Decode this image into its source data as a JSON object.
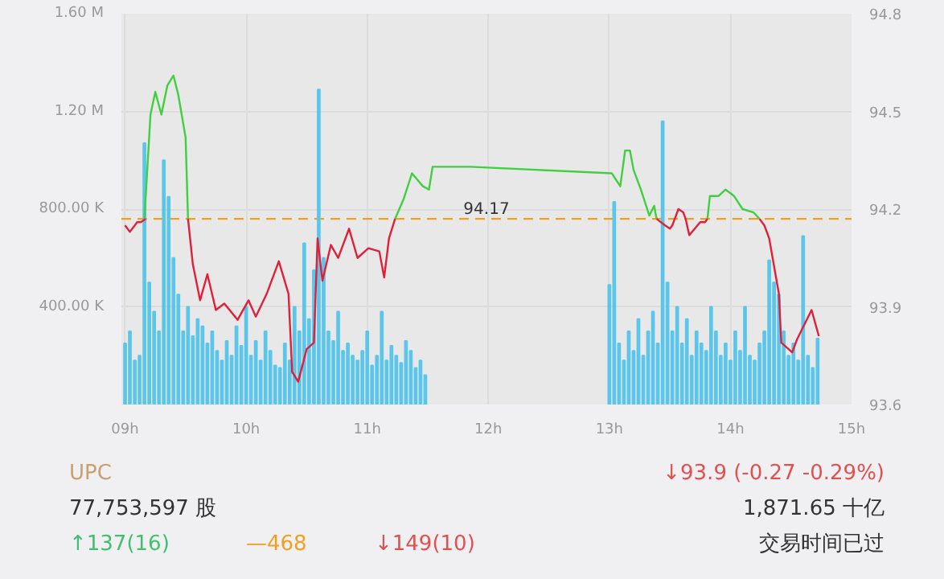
{
  "chart_data": {
    "type": "bar",
    "xlim": [
      8.97,
      15
    ],
    "xticks": [
      {
        "value": 9,
        "label": "09h"
      },
      {
        "value": 10,
        "label": "10h"
      },
      {
        "value": 11,
        "label": "11h"
      },
      {
        "value": 12,
        "label": "12h"
      },
      {
        "value": 13,
        "label": "13h"
      },
      {
        "value": 14,
        "label": "14h"
      },
      {
        "value": 15,
        "label": "15h"
      }
    ],
    "ylim": [
      0,
      1600000
    ],
    "yticks": [
      {
        "value": 0,
        "label": null
      },
      {
        "value": 400000,
        "label": "400.00 K"
      },
      {
        "value": 800000,
        "label": "800.00 K"
      },
      {
        "value": 1200000,
        "label": "1.20 M"
      },
      {
        "value": 1600000,
        "label": "1.60 M"
      }
    ],
    "y2lim": [
      93.6,
      94.8
    ],
    "y2ticks": [
      93.6,
      93.9,
      94.2,
      94.5,
      94.8
    ],
    "grid": true,
    "series": [
      {
        "axis": "y",
        "color": "#5bc6ea",
        "x": [
          9.0,
          9.04,
          9.08,
          9.12,
          9.16,
          9.2,
          9.24,
          9.28,
          9.32,
          9.36,
          9.4,
          9.44,
          9.48,
          9.52,
          9.56,
          9.6,
          9.64,
          9.68,
          9.72,
          9.76,
          9.8,
          9.84,
          9.88,
          9.92,
          9.96,
          10.0,
          10.04,
          10.08,
          10.12,
          10.16,
          10.2,
          10.24,
          10.28,
          10.32,
          10.36,
          10.4,
          10.44,
          10.48,
          10.52,
          10.56,
          10.6,
          10.64,
          10.68,
          10.72,
          10.76,
          10.8,
          10.84,
          10.88,
          10.92,
          10.96,
          11.0,
          11.04,
          11.08,
          11.12,
          11.16,
          11.2,
          11.24,
          11.28,
          11.32,
          11.36,
          11.4,
          11.44,
          11.48,
          13.0,
          13.04,
          13.08,
          13.12,
          13.16,
          13.2,
          13.24,
          13.28,
          13.32,
          13.36,
          13.4,
          13.44,
          13.48,
          13.52,
          13.56,
          13.6,
          13.64,
          13.68,
          13.72,
          13.76,
          13.8,
          13.84,
          13.88,
          13.92,
          13.96,
          14.0,
          14.04,
          14.08,
          14.12,
          14.16,
          14.2,
          14.24,
          14.28,
          14.32,
          14.36,
          14.4,
          14.44,
          14.48,
          14.52,
          14.56,
          14.6,
          14.64,
          14.68,
          14.72
        ],
        "values": [
          250000,
          300000,
          180000,
          200000,
          1070000,
          500000,
          380000,
          300000,
          1000000,
          850000,
          600000,
          450000,
          300000,
          400000,
          280000,
          350000,
          320000,
          250000,
          300000,
          220000,
          180000,
          260000,
          200000,
          320000,
          240000,
          400000,
          200000,
          260000,
          180000,
          300000,
          220000,
          160000,
          150000,
          250000,
          180000,
          400000,
          300000,
          660000,
          350000,
          550000,
          1290000,
          600000,
          300000,
          260000,
          380000,
          220000,
          250000,
          200000,
          180000,
          220000,
          300000,
          160000,
          200000,
          380000,
          180000,
          240000,
          200000,
          170000,
          260000,
          220000,
          150000,
          180000,
          120000,
          490000,
          830000,
          250000,
          180000,
          300000,
          220000,
          350000,
          200000,
          300000,
          380000,
          250000,
          1160000,
          500000,
          300000,
          400000,
          250000,
          350000,
          200000,
          300000,
          250000,
          220000,
          400000,
          300000,
          200000,
          250000,
          180000,
          300000,
          220000,
          400000,
          200000,
          180000,
          250000,
          300000,
          590000,
          500000,
          450000,
          300000,
          200000,
          250000,
          180000,
          690000,
          200000,
          150000,
          270000
        ]
      },
      {
        "type": "line",
        "axis": "y2",
        "color": "#3fcf3f",
        "x": [
          9.16,
          9.21,
          9.25,
          9.3,
          9.35,
          9.4,
          9.44,
          9.5,
          9.52,
          9.53,
          11.23,
          11.3,
          11.37,
          11.46,
          11.51,
          11.54,
          11.85,
          13.02,
          13.09,
          13.13,
          13.17,
          13.2,
          13.26,
          13.33,
          13.37,
          13.39,
          13.4,
          13.81,
          13.83,
          13.9,
          13.96,
          14.03,
          14.1,
          14.19,
          14.24
        ],
        "values": [
          94.17,
          94.49,
          94.56,
          94.49,
          94.58,
          94.61,
          94.55,
          94.42,
          94.17,
          null,
          94.17,
          94.23,
          94.31,
          94.27,
          94.26,
          94.33,
          94.33,
          94.31,
          94.27,
          94.38,
          94.38,
          94.32,
          94.26,
          94.18,
          94.21,
          94.17,
          null,
          94.17,
          94.24,
          94.24,
          94.26,
          94.24,
          94.2,
          94.19,
          94.17
        ]
      },
      {
        "type": "line",
        "axis": "y2",
        "color": "#e0223c",
        "x": [
          9.0,
          9.04,
          9.1,
          9.13,
          9.17
        ],
        "values": [
          94.15,
          94.13,
          94.16,
          94.16,
          94.17
        ]
      },
      {
        "type": "line",
        "axis": "y2",
        "color": "#e0203a",
        "x": [
          9.52,
          9.56,
          9.62,
          9.68,
          9.75,
          9.82,
          9.93,
          10.02,
          10.08,
          10.17,
          10.27,
          10.35,
          10.38,
          10.43,
          10.5,
          10.56,
          10.59,
          10.63,
          10.7,
          10.76,
          10.85,
          10.92,
          11.01,
          11.1,
          11.14,
          11.18,
          11.23,
          11.24,
          13.39,
          13.46,
          13.5,
          13.52,
          13.54,
          13.57,
          13.61,
          13.63,
          13.66,
          13.75,
          13.79,
          13.81,
          13.82,
          14.24,
          14.28,
          14.32,
          14.4,
          14.42,
          14.51,
          14.55,
          14.67,
          14.73
        ],
        "values": [
          94.17,
          94.03,
          93.92,
          94.0,
          93.89,
          93.91,
          93.86,
          93.92,
          93.87,
          93.94,
          94.04,
          93.94,
          93.7,
          93.67,
          93.77,
          93.79,
          94.11,
          93.98,
          94.09,
          94.05,
          94.14,
          94.05,
          94.08,
          94.07,
          93.99,
          94.11,
          94.17,
          null,
          94.17,
          94.15,
          94.14,
          94.15,
          94.17,
          94.2,
          94.19,
          94.17,
          94.12,
          94.16,
          94.16,
          94.17,
          null,
          94.17,
          94.15,
          94.11,
          93.94,
          93.79,
          93.76,
          93.8,
          93.89,
          93.81
        ]
      }
    ],
    "ref_lines": [
      {
        "axis": "y2",
        "value": 94.17,
        "label": "94.17",
        "color": "#f0a020",
        "line_style": "dashed"
      }
    ],
    "annotations": [
      "UPC",
      "77,753,597 股",
      "↑137(16)",
      "—468",
      "↓149(10)",
      "↓93.9 (-0.27 -0.29%)",
      "1,871.65 十亿",
      "交易时间已过"
    ]
  }
}
